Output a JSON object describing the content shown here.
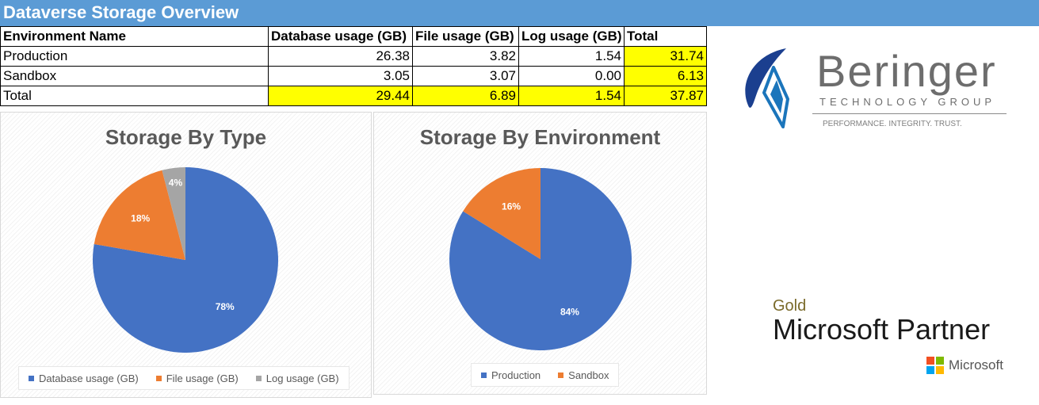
{
  "header": {
    "title": "Dataverse Storage Overview"
  },
  "table": {
    "columns": [
      "Environment Name",
      "Database usage (GB)",
      "File usage (GB)",
      "Log usage (GB)",
      "Total"
    ],
    "rows": [
      {
        "name": "Production",
        "database": "26.38",
        "file": "3.82",
        "log": "1.54",
        "total": "31.74"
      },
      {
        "name": "Sandbox",
        "database": "3.05",
        "file": "3.07",
        "log": "0.00",
        "total": "6.13"
      },
      {
        "name": "Total",
        "database": "29.44",
        "file": "6.89",
        "log": "1.54",
        "total": "37.87"
      }
    ]
  },
  "chart_data": [
    {
      "type": "pie",
      "title": "Storage By Type",
      "categories": [
        "Database usage (GB)",
        "File usage (GB)",
        "Log usage (GB)"
      ],
      "values": [
        29.44,
        6.89,
        1.54
      ],
      "labels": [
        "78%",
        "18%",
        "4%"
      ],
      "colors": [
        "#4472c4",
        "#ed7d31",
        "#a5a5a5"
      ],
      "legend": "bottom"
    },
    {
      "type": "pie",
      "title": "Storage By Environment",
      "categories": [
        "Production",
        "Sandbox"
      ],
      "values": [
        31.74,
        6.13
      ],
      "labels": [
        "84%",
        "16%"
      ],
      "colors": [
        "#4472c4",
        "#ed7d31"
      ],
      "legend": "bottom"
    }
  ],
  "branding": {
    "company": "Beringer",
    "company_sub": "TECHNOLOGY GROUP",
    "tagline": "PERFORMANCE. INTEGRITY. TRUST.",
    "partner_level": "Gold",
    "partner_name": "Microsoft Partner",
    "microsoft": "Microsoft"
  },
  "colors": {
    "header_bg": "#5b9bd5",
    "highlight": "#ffff00",
    "accent_blue": "#4472c4",
    "accent_orange": "#ed7d31",
    "accent_gray": "#a5a5a5"
  }
}
